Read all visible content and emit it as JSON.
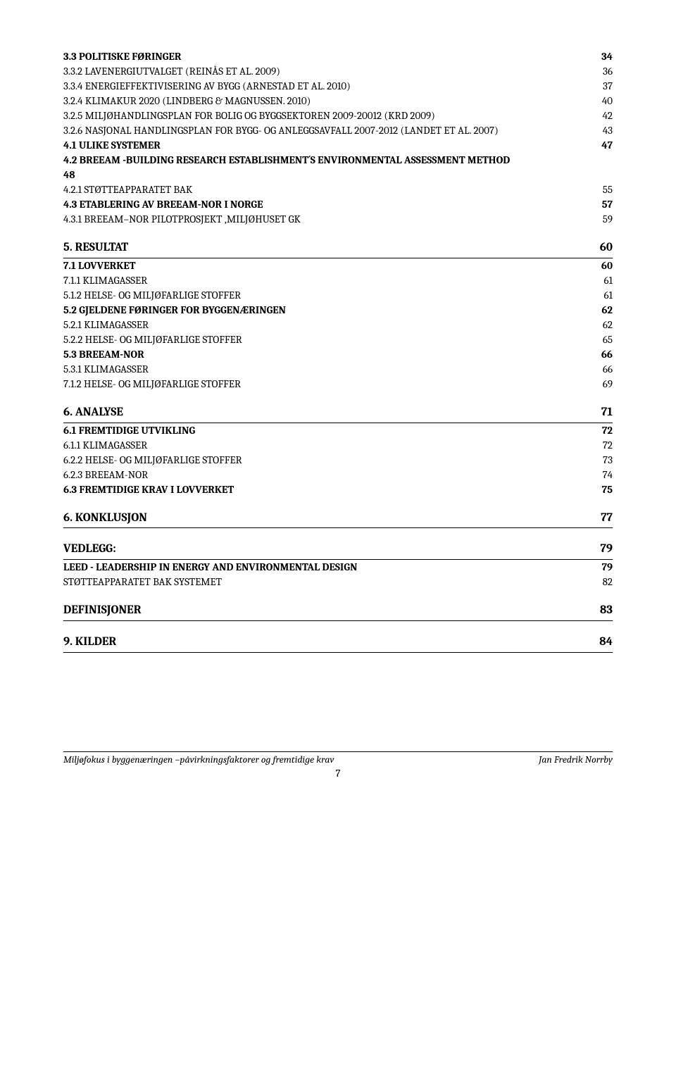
{
  "toc": [
    {
      "label": "3.3 POLITISKE FØRINGER",
      "page": "34",
      "cls": "row l1 bold sc"
    },
    {
      "label": "3.3.2   LAVENERGIUTVALGET (REINÅS ET AL. 2009)",
      "page": "36",
      "cls": "row l2 sc"
    },
    {
      "label": "3.3.4 ENERGIEFFEKTIVISERING AV BYGG (ARNESTAD ET AL. 2010)",
      "page": "37",
      "cls": "row l2 sc"
    },
    {
      "label": "3.2.4 KLIMAKUR 2020 (LINDBERG & MAGNUSSEN. 2010)",
      "page": "40",
      "cls": "row l2 sc"
    },
    {
      "label": "3.2.5   MILJØHANDLINGSPLAN FOR BOLIG OG BYGGSEKTOREN 2009-20012 (KRD 2009)",
      "page": "42",
      "cls": "row l2 sc"
    },
    {
      "label": "3.2.6 NASJONAL HANDLINGSPLAN FOR BYGG- OG ANLEGGSAVFALL 2007-2012 (LANDET ET AL. 2007)",
      "page": "43",
      "cls": "row l2 sc"
    },
    {
      "label": "4.1 ULIKE SYSTEMER",
      "page": "47",
      "cls": "row l1 bold sc"
    },
    {
      "label": "4.2 BREEAM     -BUILDING RESEARCH ESTABLISHMENT´S ENVIRONMENTAL ASSESSMENT METHOD",
      "page": "",
      "cls": "row l1 bold sc"
    },
    {
      "label": "                48",
      "page": "",
      "cls": "row l1 bold"
    },
    {
      "label": "4.2.1 STØTTEAPPARATET BAK",
      "page": "55",
      "cls": "row l2 sc"
    },
    {
      "label": "4.3 ETABLERING AV BREEAM-NOR I NORGE",
      "page": "57",
      "cls": "row l1 bold sc"
    },
    {
      "label": "4.3.1 BREEAM–NOR PILOTPROSJEKT ,MILJØHUSET GK",
      "page": "59",
      "cls": "row l2 sc"
    },
    {
      "label": "5. RESULTAT",
      "page": "60",
      "cls": "row h-section"
    },
    {
      "label": "7.1 LOVVERKET",
      "page": "60",
      "cls": "row l1 bold sc"
    },
    {
      "label": "7.1.1 KLIMAGASSER",
      "page": "61",
      "cls": "row l2 sc"
    },
    {
      "label": "5.1.2 HELSE- OG MILJØFARLIGE STOFFER",
      "page": "61",
      "cls": "row l2 sc"
    },
    {
      "label": "5.2 GJELDENE FØRINGER FOR BYGGENÆRINGEN",
      "page": "62",
      "cls": "row l1 bold sc"
    },
    {
      "label": "5.2.1 KLIMAGASSER",
      "page": "62",
      "cls": "row l2 sc"
    },
    {
      "label": "5.2.2 HELSE- OG MILJØFARLIGE STOFFER",
      "page": "65",
      "cls": "row l2 sc"
    },
    {
      "label": "5.3 BREEAM-NOR",
      "page": "66",
      "cls": "row l1 bold sc"
    },
    {
      "label": "5.3.1 KLIMAGASSER",
      "page": "66",
      "cls": "row l2 sc"
    },
    {
      "label": "7.1.2 HELSE- OG MILJØFARLIGE STOFFER",
      "page": "69",
      "cls": "row l2 sc"
    },
    {
      "label": "6. ANALYSE",
      "page": "71",
      "cls": "row h-section"
    },
    {
      "label": "6.1 FREMTIDIGE UTVIKLING",
      "page": "72",
      "cls": "row l1 bold sc"
    },
    {
      "label": "6.1.1 KLIMAGASSER",
      "page": "72",
      "cls": "row l2 sc"
    },
    {
      "label": "6.2.2 HELSE- OG MILJØFARLIGE STOFFER",
      "page": "73",
      "cls": "row l2 sc"
    },
    {
      "label": "6.2.3 BREEAM-NOR",
      "page": "74",
      "cls": "row l2"
    },
    {
      "label": "6.3 FREMTIDIGE KRAV I LOVVERKET",
      "page": "75",
      "cls": "row l1 bold sc"
    },
    {
      "label": "6. KONKLUSJON",
      "page": "77",
      "cls": "row h-section"
    },
    {
      "label": "VEDLEGG:",
      "page": "79",
      "cls": "row h-section"
    },
    {
      "label": "LEED - LEADERSHIP IN ENERGY AND ENVIRONMENTAL DESIGN",
      "page": "79",
      "cls": "row l1 bold sc"
    },
    {
      "label": "STØTTEAPPARATET BAK SYSTEMET",
      "page": "82",
      "cls": "row l2 sc"
    },
    {
      "label": "DEFINISJONER",
      "page": "83",
      "cls": "row h-section"
    },
    {
      "label": "9. KILDER",
      "page": "84",
      "cls": "row h-section"
    }
  ],
  "footer": {
    "left": "Miljøfokus i byggenæringen –påvirkningsfaktorer og fremtidige krav",
    "right": "Jan Fredrik Norrby",
    "page": "7"
  },
  "colors": {
    "text": "#000000",
    "background": "#ffffff",
    "rule": "#000000"
  },
  "fontsize": {
    "body": 15,
    "section": 17,
    "footer": 14
  }
}
